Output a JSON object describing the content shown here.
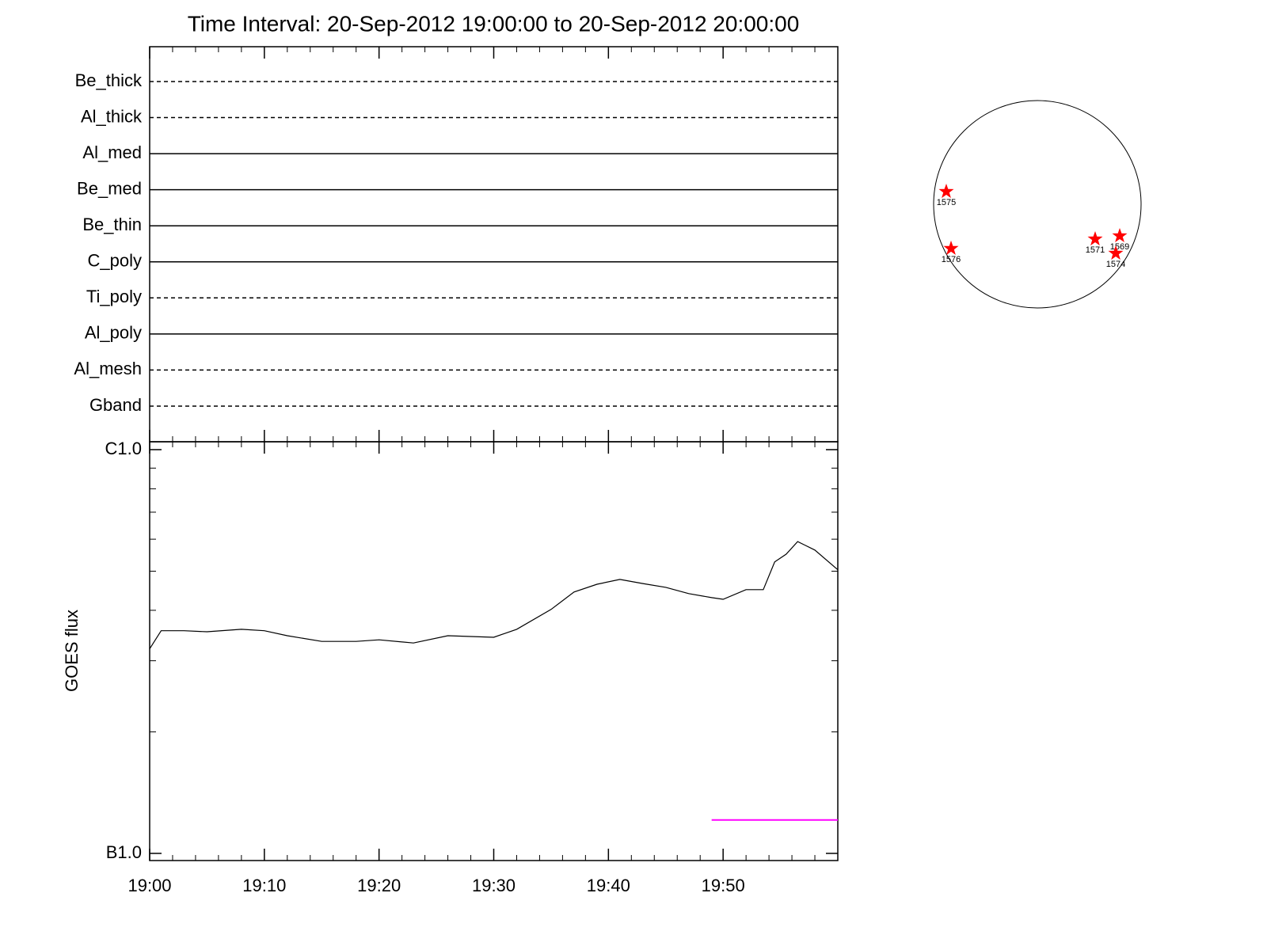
{
  "chart_data": [
    {
      "type": "filters",
      "title": "Time Interval: 20-Sep-2012 19:00:00 to 20-Sep-2012 20:00:00",
      "filters": [
        {
          "name": "Be_thick",
          "style": "dashed"
        },
        {
          "name": "Al_thick",
          "style": "dashed"
        },
        {
          "name": "Al_med",
          "style": "solid"
        },
        {
          "name": "Be_med",
          "style": "solid"
        },
        {
          "name": "Be_thin",
          "style": "solid"
        },
        {
          "name": "C_poly",
          "style": "solid"
        },
        {
          "name": "Ti_poly",
          "style": "dashed"
        },
        {
          "name": "Al_poly",
          "style": "solid"
        },
        {
          "name": "Al_mesh",
          "style": "dashed"
        },
        {
          "name": "Gband",
          "style": "dashed"
        }
      ]
    },
    {
      "type": "line",
      "ylabel": "GOES flux",
      "log_y": true,
      "xlim": [
        "19:00:00",
        "20:00:00"
      ],
      "xticks": [
        "19:00",
        "19:10",
        "19:20",
        "19:30",
        "19:40",
        "19:50"
      ],
      "xticks_minor": [
        "19:02",
        "19:04",
        "19:06",
        "19:08",
        "19:12",
        "19:14",
        "19:16",
        "19:18",
        "19:22",
        "19:24",
        "19:26",
        "19:28",
        "19:32",
        "19:34",
        "19:36",
        "19:38",
        "19:42",
        "19:44",
        "19:46",
        "19:48",
        "19:52",
        "19:54",
        "19:56",
        "19:58"
      ],
      "ylim": [
        9.6e-08,
        1.046e-06
      ],
      "yticks": [
        {
          "value": 1e-07,
          "label": "B1.0"
        },
        {
          "value": 1e-06,
          "label": "C1.0"
        }
      ],
      "yticks_minor": [
        2e-07,
        3e-07,
        4e-07,
        5e-07,
        6e-07,
        7e-07,
        8e-07,
        9e-07
      ],
      "series": [
        {
          "color": "#000000",
          "x": [
            "19:00:00",
            "19:01:00",
            "19:03:00",
            "19:05:00",
            "19:08:00",
            "19:10:00",
            "19:12:00",
            "19:15:00",
            "19:18:00",
            "19:20:00",
            "19:23:00",
            "19:26:00",
            "19:30:00",
            "19:32:00",
            "19:35:00",
            "19:37:00",
            "19:39:00",
            "19:41:00",
            "19:43:00",
            "19:45:00",
            "19:47:00",
            "19:49:00",
            "19:50:00",
            "19:52:00",
            "19:53:30",
            "19:54:30",
            "19:55:30",
            "19:56:30",
            "19:58:00",
            "20:00:00"
          ],
          "values": [
            3.21e-07,
            3.56e-07,
            3.56e-07,
            3.54e-07,
            3.59e-07,
            3.56e-07,
            3.46e-07,
            3.35e-07,
            3.35e-07,
            3.38e-07,
            3.32e-07,
            3.46e-07,
            3.43e-07,
            3.59e-07,
            4.02e-07,
            4.44e-07,
            4.64e-07,
            4.77e-07,
            4.66e-07,
            4.56e-07,
            4.4e-07,
            4.3e-07,
            4.26e-07,
            4.5e-07,
            4.5e-07,
            5.27e-07,
            5.51e-07,
            5.92e-07,
            5.64e-07,
            5.04e-07
          ]
        }
      ],
      "markers": [
        {
          "x": [
            "19:49:00",
            "20:00:00"
          ],
          "value": 1.21e-07,
          "color": "#ff00ff"
        }
      ]
    },
    {
      "type": "disk",
      "color": "#ff0000",
      "regions": [
        {
          "label": "1575",
          "x": -0.878,
          "y": 0.122
        },
        {
          "label": "1576",
          "x": -0.832,
          "y": -0.427
        },
        {
          "label": "1571",
          "x": 0.557,
          "y": -0.336
        },
        {
          "label": "1569",
          "x": 0.794,
          "y": -0.305
        },
        {
          "label": "1574",
          "x": 0.756,
          "y": -0.473
        }
      ]
    }
  ]
}
